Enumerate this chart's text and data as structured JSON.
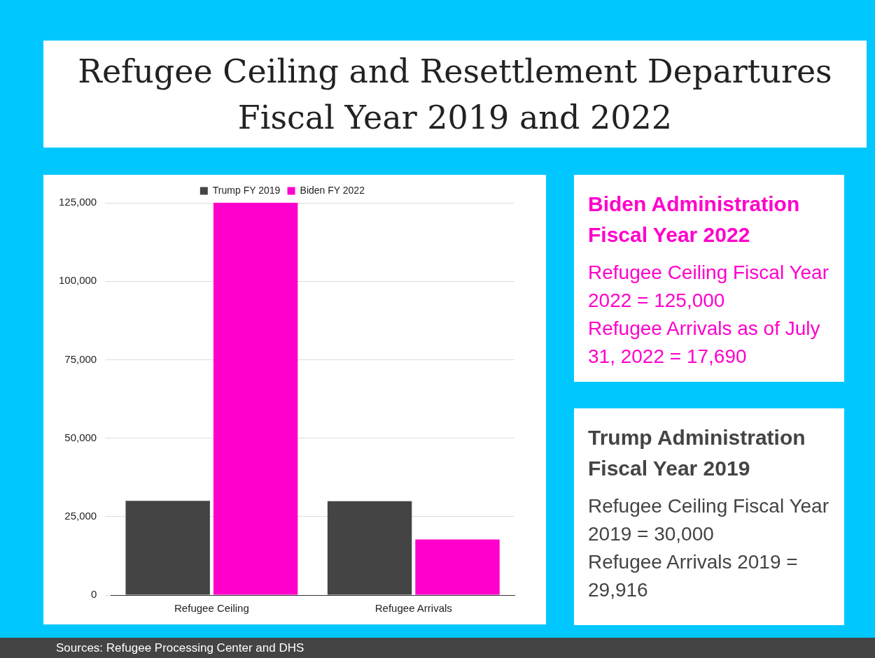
{
  "chart_data": {
    "type": "bar",
    "title": "Refugee Ceiling and Resettlement Departures\nFiscal Year 2019 and 2022",
    "categories": [
      "Refugee Ceiling",
      "Refugee Arrivals"
    ],
    "series": [
      {
        "name": "Trump FY 2019",
        "color": "#444444",
        "values": [
          30000,
          29916
        ]
      },
      {
        "name": "Biden FY 2022",
        "color": "#ff00cc",
        "values": [
          125000,
          17690
        ]
      }
    ],
    "ylim": [
      0,
      125000
    ],
    "yticks": [
      0,
      {
        "value": 25000,
        "label": "25,000"
      },
      {
        "value": 50000,
        "label": "50,000"
      },
      {
        "value": 75000,
        "label": "75,000"
      },
      {
        "value": 100000,
        "label": "100,000"
      },
      {
        "value": 125000,
        "label": "125,000"
      }
    ],
    "grid": "y",
    "legend": "top",
    "annotations": [
      "Biden Administration Fiscal Year 2022",
      "Refugee Ceiling Fiscal Year 2022 = 125,000",
      "Refugee Arrivals as of July 31, 2022 = 17,690",
      "Trump Administration Fiscal Year 2019",
      "Refugee Ceiling Fiscal Year 2019 = 30,000",
      "Refugee Arrivals 2019 = 29,916",
      "Sources: Refugee Processing Center and DHS"
    ]
  }
}
